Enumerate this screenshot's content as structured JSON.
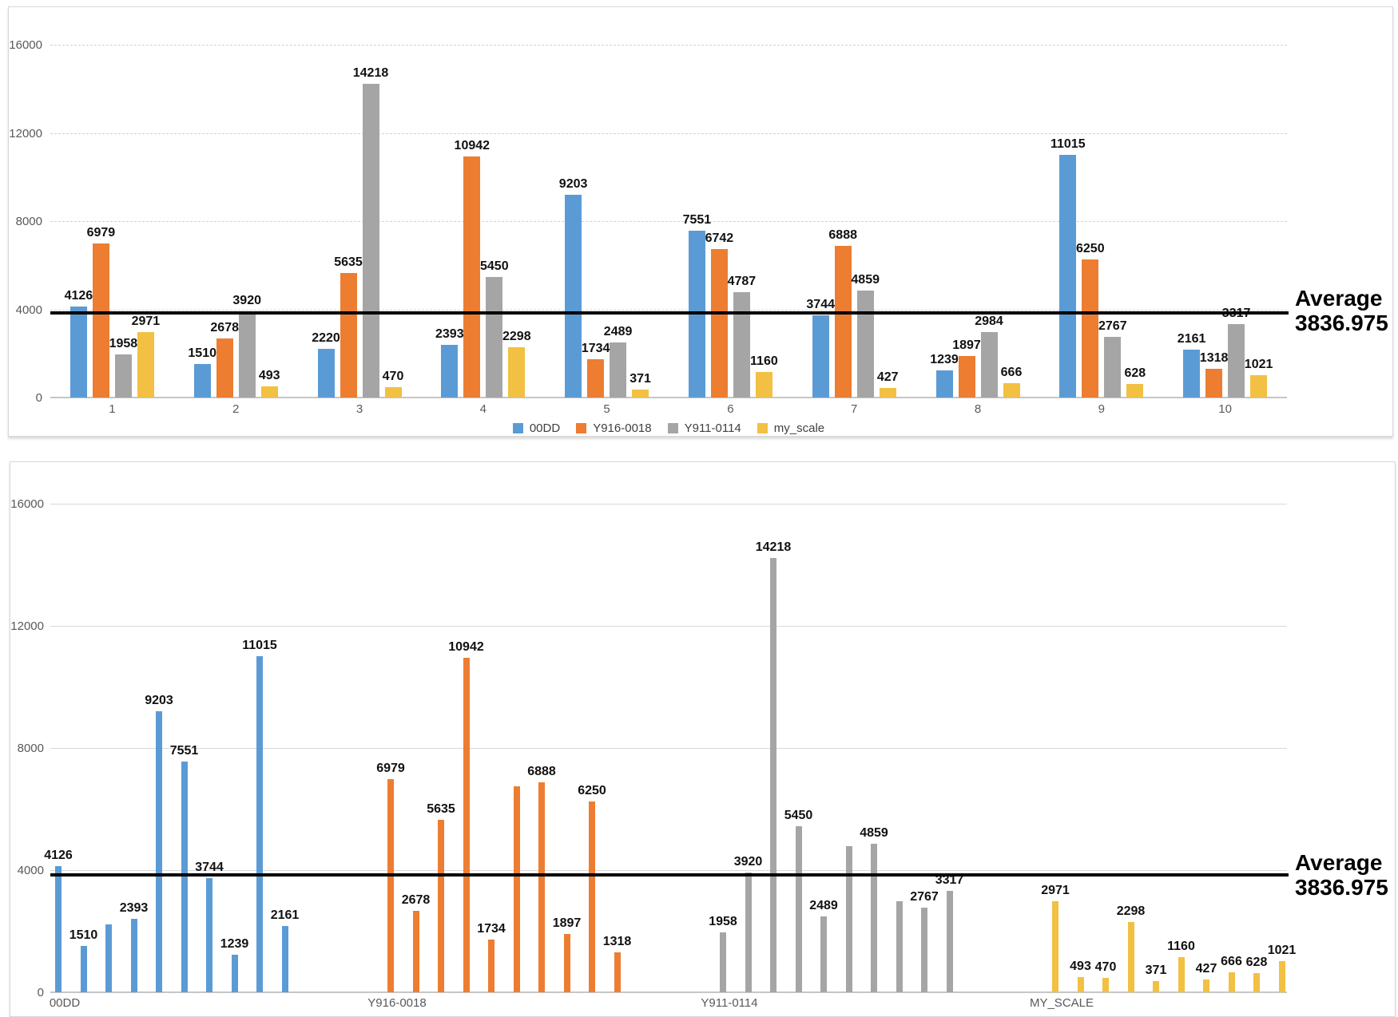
{
  "average": {
    "label": "Average",
    "value_text": "3836.975",
    "value": 3836.975
  },
  "axis": {
    "y_ticks": [
      "0",
      "4000",
      "8000",
      "12000",
      "16000"
    ],
    "y_tick_values": [
      0,
      4000,
      8000,
      12000,
      16000
    ],
    "y_max": 16000
  },
  "legend": {
    "items": [
      {
        "label": "00DD",
        "color": "#5B9BD5"
      },
      {
        "label": "Y916-0018",
        "color": "#ED7D31"
      },
      {
        "label": "Y911-0114",
        "color": "#A5A5A5"
      },
      {
        "label": "my_scale",
        "color": "#F2C042"
      }
    ]
  },
  "chart_data": [
    {
      "type": "bar",
      "title": "",
      "layout_hint": "clustered columns grouped by category, legend bottom, dashed horizontal gridlines, all bars have data labels",
      "categories": [
        "1",
        "2",
        "3",
        "4",
        "5",
        "6",
        "7",
        "8",
        "9",
        "10"
      ],
      "series": [
        {
          "name": "00DD",
          "color": "#5B9BD5",
          "values": [
            4126,
            1510,
            2220,
            2393,
            9203,
            7551,
            3744,
            1239,
            11015,
            2161
          ]
        },
        {
          "name": "Y916-0018",
          "color": "#ED7D31",
          "values": [
            6979,
            2678,
            5635,
            10942,
            1734,
            6742,
            6888,
            1897,
            6250,
            1318
          ]
        },
        {
          "name": "Y911-0114",
          "color": "#A5A5A5",
          "values": [
            1958,
            3920,
            14218,
            5450,
            2489,
            4787,
            4859,
            2984,
            2767,
            3317
          ]
        },
        {
          "name": "my_scale",
          "color": "#F2C042",
          "values": [
            2971,
            493,
            470,
            2298,
            371,
            1160,
            427,
            666,
            628,
            1021
          ]
        }
      ],
      "ylim": [
        0,
        16000
      ],
      "grid": "dashed",
      "legend_position": "bottom",
      "annotations": {
        "average_line": 3836.975,
        "average_text": "Average 3836.975"
      }
    },
    {
      "type": "bar",
      "title": "",
      "layout_hint": "same data re-grouped by series (thin columns), solid horizontal gridlines, no legend, some overlapping data labels hidden",
      "groups": [
        {
          "label": "00DD",
          "color": "#5B9BD5",
          "values": [
            4126,
            1510,
            2220,
            2393,
            9203,
            7551,
            3744,
            1239,
            11015,
            2161
          ],
          "unlabeled_value_indices": [
            2
          ]
        },
        {
          "label": "Y916-0018",
          "color": "#ED7D31",
          "values": [
            6979,
            2678,
            5635,
            10942,
            1734,
            6742,
            6888,
            1897,
            6250,
            1318
          ],
          "unlabeled_value_indices": [
            5
          ]
        },
        {
          "label": "Y911-0114",
          "color": "#A5A5A5",
          "values": [
            1958,
            3920,
            14218,
            5450,
            2489,
            4787,
            4859,
            2984,
            2767,
            3317
          ],
          "unlabeled_value_indices": [
            5,
            7
          ]
        },
        {
          "label": "MY_SCALE",
          "color": "#F2C042",
          "values": [
            2971,
            493,
            470,
            2298,
            371,
            1160,
            427,
            666,
            628,
            1021
          ],
          "unlabeled_value_indices": []
        }
      ],
      "ylim": [
        0,
        16000
      ],
      "grid": "solid",
      "legend_position": "none",
      "annotations": {
        "average_line": 3836.975,
        "average_text": "Average 3836.975"
      }
    }
  ]
}
